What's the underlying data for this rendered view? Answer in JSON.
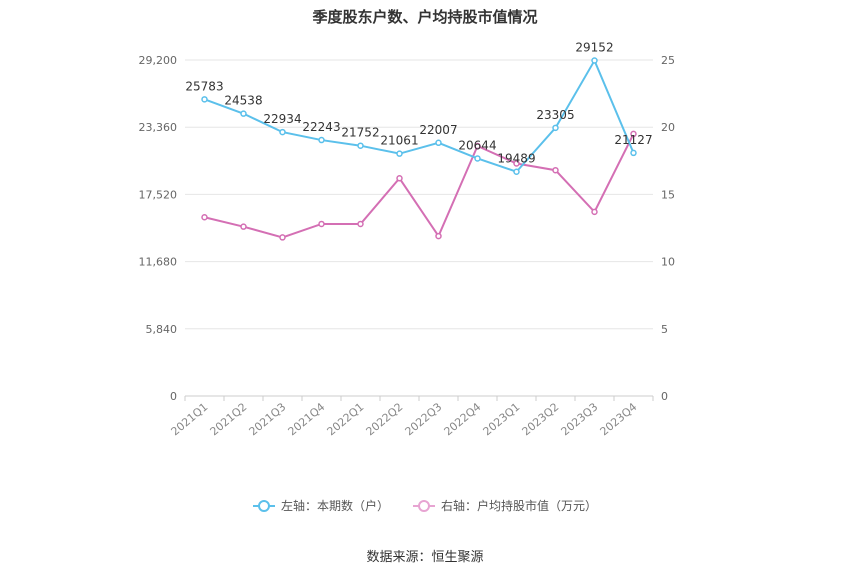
{
  "chart_data": {
    "type": "line",
    "title": "季度股东户数、户均持股市值情况",
    "categories": [
      "2021Q1",
      "2021Q2",
      "2021Q3",
      "2021Q4",
      "2022Q1",
      "2022Q2",
      "2022Q3",
      "2022Q4",
      "2023Q1",
      "2023Q2",
      "2023Q3",
      "2023Q4"
    ],
    "series": [
      {
        "name": "左轴：本期数（户）",
        "axis": "left",
        "color": "#5bc0eb",
        "values": [
          25783,
          24538,
          22934,
          22243,
          21752,
          21061,
          22007,
          20644,
          19489,
          23305,
          29152,
          21127
        ],
        "labels": [
          "25783",
          "24538",
          "22934",
          "22243",
          "21752",
          "21061",
          "22007",
          "20644",
          "19489",
          "23305",
          "29152",
          "21127"
        ]
      },
      {
        "name": "右轴：户均持股市值（万元）",
        "axis": "right",
        "color": "#d46fb4",
        "values": [
          13.3,
          12.6,
          11.8,
          12.8,
          12.8,
          16.2,
          11.9,
          18.6,
          17.3,
          16.8,
          13.7,
          19.5
        ]
      }
    ],
    "left_axis": {
      "ticks": [
        0,
        5840,
        11680,
        17520,
        23360,
        29200
      ],
      "tick_labels": [
        "0",
        "5,840",
        "11,680",
        "17,520",
        "23,360",
        "29,200"
      ],
      "ylim": [
        0,
        29200
      ]
    },
    "right_axis": {
      "ticks": [
        0,
        5,
        10,
        15,
        20,
        25
      ],
      "tick_labels": [
        "0",
        "5",
        "10",
        "15",
        "20",
        "25"
      ],
      "ylim": [
        0,
        25
      ]
    },
    "grid": true,
    "legend_position": "bottom"
  },
  "legend": {
    "left_label": "左轴：本期数（户）",
    "right_label": "右轴：户均持股市值（万元）"
  },
  "source": "数据来源：恒生聚源"
}
